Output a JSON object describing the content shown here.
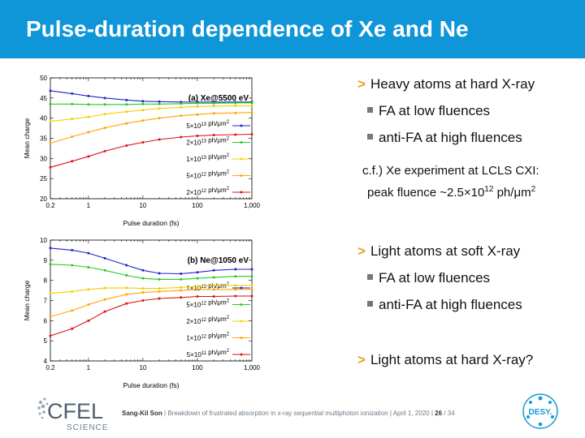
{
  "slide": {
    "title": "Pulse-duration dependence of Xe and Ne",
    "footer": {
      "author": "Sang-Kil Son",
      "sep1": "|",
      "talk": "Breakdown of frustrated absorption in x-ray sequential multiphoton ionization",
      "sep2": "|",
      "date": "April 1, 2020",
      "sep3": "|",
      "page": "26",
      "page_total": "/ 34"
    },
    "logos": {
      "cfel_text": "CFEL",
      "science_text": "SCIENCE",
      "desy_text": "DESY."
    }
  },
  "bullets": {
    "section1": {
      "arrow": ">",
      "head": "Heavy atoms at hard X-ray",
      "items": [
        "FA at low fluences",
        "anti-FA at high fluences"
      ]
    },
    "note": {
      "line1": "c.f.) Xe experiment at LCLS CXI:",
      "line2_prefix": "peak fluence ~2.5×10",
      "line2_exp": "12",
      "line2_suffix": " ph/μm",
      "line2_sup": "2"
    },
    "section2": {
      "arrow": ">",
      "head": "Light atoms at soft X-ray",
      "items": [
        "FA at low fluences",
        "anti-FA at high fluences"
      ]
    },
    "section3": {
      "arrow": ">",
      "head": "Light atoms at hard X-ray?"
    }
  },
  "colors": {
    "title_bar": "#0f96d8",
    "blue": "#2222cc",
    "green": "#22cc22",
    "yellow": "#f0d000",
    "orange": "#ffa500",
    "red": "#dd1111",
    "arrow": "#e8a21a"
  },
  "chart_data": [
    {
      "type": "line",
      "title": "(a) Xe@5500 eV",
      "xlabel": "Pulse duration (fs)",
      "ylabel": "Mean charge",
      "xscale": "log",
      "xlim": [
        0.2,
        1000
      ],
      "ylim": [
        20,
        50
      ],
      "xticks": [
        "0.2",
        "1",
        "10",
        "100",
        "1,000"
      ],
      "yticks": [
        "20",
        "25",
        "30",
        "35",
        "40",
        "45",
        "50"
      ],
      "x": [
        0.2,
        0.5,
        1,
        2,
        5,
        10,
        20,
        50,
        100,
        200,
        500,
        1000
      ],
      "legend_position": "right",
      "series": [
        {
          "name": "5×10^13 ph/μm^2",
          "name_mant": "5×10",
          "name_exp": "13",
          "unit": "ph/μm",
          "unit_exp": "2",
          "color": "blue",
          "values": [
            46.8,
            46.1,
            45.5,
            45.0,
            44.5,
            44.2,
            44.1,
            44.0,
            44.0,
            44.0,
            44.0,
            44.0
          ]
        },
        {
          "name": "2×10^13 ph/μm^2",
          "name_mant": "2×10",
          "name_exp": "13",
          "unit": "ph/μm",
          "unit_exp": "2",
          "color": "green",
          "values": [
            43.5,
            43.5,
            43.4,
            43.4,
            43.4,
            43.5,
            43.5,
            43.6,
            43.7,
            43.7,
            43.8,
            43.8
          ]
        },
        {
          "name": "1×10^13 ph/μm^2",
          "name_mant": "1×10",
          "name_exp": "13",
          "unit": "ph/μm",
          "unit_exp": "2",
          "color": "yellow",
          "values": [
            39.2,
            39.8,
            40.3,
            41.0,
            41.6,
            42.0,
            42.4,
            42.7,
            42.9,
            43.0,
            43.1,
            43.1
          ]
        },
        {
          "name": "5×10^12 ph/μm^2",
          "name_mant": "5×10",
          "name_exp": "12",
          "unit": "ph/μm",
          "unit_exp": "2",
          "color": "orange",
          "values": [
            33.8,
            35.4,
            36.5,
            37.6,
            38.7,
            39.4,
            40.0,
            40.6,
            40.9,
            41.2,
            41.3,
            41.4
          ]
        },
        {
          "name": "2×10^12 ph/μm^2",
          "name_mant": "2×10",
          "name_exp": "12",
          "unit": "ph/μm",
          "unit_exp": "2",
          "color": "red",
          "values": [
            27.8,
            29.3,
            30.5,
            31.8,
            33.2,
            34.0,
            34.7,
            35.3,
            35.6,
            35.8,
            35.9,
            36.0
          ]
        }
      ]
    },
    {
      "type": "line",
      "title": "(b) Ne@1050 eV",
      "xlabel": "Pulse duration (fs)",
      "ylabel": "Mean charge",
      "xscale": "log",
      "xlim": [
        0.2,
        1000
      ],
      "ylim": [
        4,
        10
      ],
      "xticks": [
        "0.2",
        "1",
        "10",
        "100",
        "1,000"
      ],
      "yticks": [
        "4",
        "5",
        "6",
        "7",
        "8",
        "9",
        "10"
      ],
      "x": [
        0.2,
        0.5,
        1,
        2,
        5,
        10,
        20,
        50,
        100,
        200,
        500,
        1000
      ],
      "legend_position": "right",
      "series": [
        {
          "name": "1×10^13 ph/μm^2",
          "name_mant": "1×10",
          "name_exp": "13",
          "unit": "ph/μm",
          "unit_exp": "2",
          "color": "blue",
          "values": [
            9.6,
            9.5,
            9.35,
            9.1,
            8.75,
            8.5,
            8.35,
            8.33,
            8.4,
            8.5,
            8.55,
            8.55
          ]
        },
        {
          "name": "5×10^12 ph/μm^2",
          "name_mant": "5×10",
          "name_exp": "12",
          "unit": "ph/μm",
          "unit_exp": "2",
          "color": "green",
          "values": [
            8.8,
            8.75,
            8.65,
            8.5,
            8.25,
            8.1,
            8.05,
            8.05,
            8.1,
            8.15,
            8.2,
            8.2
          ]
        },
        {
          "name": "2×10^12 ph/μm^2",
          "name_mant": "2×10",
          "name_exp": "12",
          "unit": "ph/μm",
          "unit_exp": "2",
          "color": "yellow",
          "values": [
            7.35,
            7.45,
            7.55,
            7.62,
            7.63,
            7.6,
            7.6,
            7.65,
            7.7,
            7.75,
            7.75,
            7.75
          ]
        },
        {
          "name": "1×10^12 ph/μm^2",
          "name_mant": "1×10",
          "name_exp": "12",
          "unit": "ph/μm",
          "unit_exp": "2",
          "color": "orange",
          "values": [
            6.2,
            6.5,
            6.8,
            7.05,
            7.3,
            7.4,
            7.45,
            7.5,
            7.55,
            7.55,
            7.55,
            7.55
          ]
        },
        {
          "name": "5×10^11 ph/μm^2",
          "name_mant": "5×10",
          "name_exp": "11",
          "unit": "ph/μm",
          "unit_exp": "2",
          "color": "red",
          "values": [
            5.25,
            5.6,
            6.0,
            6.45,
            6.85,
            7.0,
            7.1,
            7.15,
            7.2,
            7.2,
            7.22,
            7.22
          ]
        }
      ]
    }
  ]
}
